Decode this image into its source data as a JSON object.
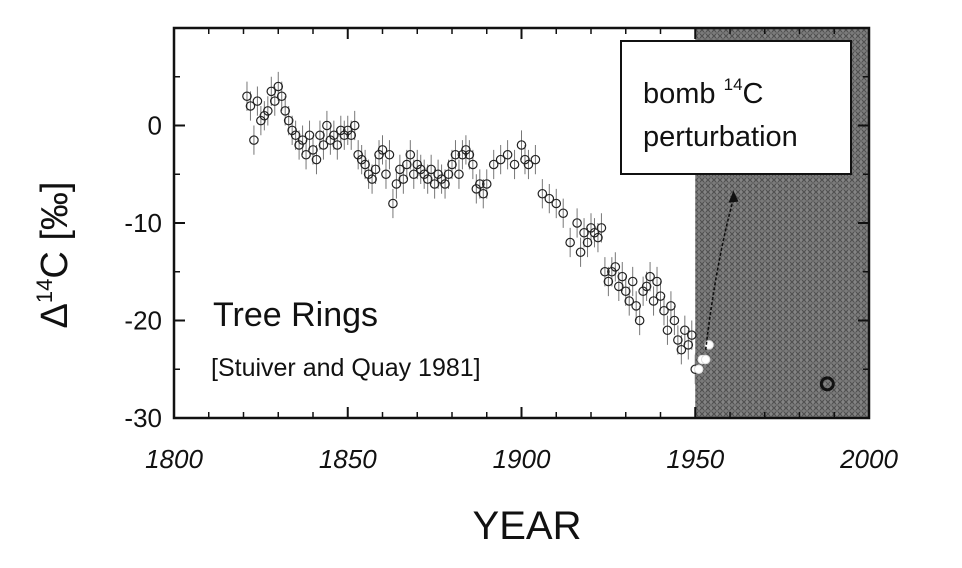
{
  "chart_data": {
    "type": "scatter",
    "title": "",
    "xlabel": "YEAR",
    "ylabel_prefix": "Δ",
    "ylabel_sup": "14",
    "ylabel_main": "C [‰]",
    "xlim": [
      1800,
      2000
    ],
    "ylim": [
      -30,
      10
    ],
    "xticks": [
      1800,
      1850,
      1900,
      1950,
      2000
    ],
    "xtick_labels": [
      "1800",
      "1850",
      "1900",
      "1950",
      "2000"
    ],
    "yticks": [
      -30,
      -20,
      -10,
      0
    ],
    "ytick_labels": [
      "-30",
      "-20",
      "-10",
      "0"
    ],
    "grid": false,
    "legend": "none",
    "annotations": {
      "series_label": "Tree Rings",
      "citation": "[Stuiver and Quay 1981]",
      "box_line1_pre": "bomb ",
      "box_line1_sup": "14",
      "box_line1_post": "C",
      "box_line2": "perturbation"
    },
    "shaded_region": {
      "x_from": 1950,
      "x_to": 2000,
      "color": "#6e6e6e"
    },
    "series": [
      {
        "name": "Tree Rings",
        "marker": "open-circle-errorbar",
        "x": [
          1821,
          1822,
          1823,
          1824,
          1825,
          1826,
          1827,
          1828,
          1829,
          1830,
          1831,
          1832,
          1833,
          1834,
          1835,
          1836,
          1837,
          1838,
          1839,
          1840,
          1841,
          1842,
          1843,
          1844,
          1845,
          1846,
          1847,
          1848,
          1849,
          1850,
          1851,
          1852,
          1853,
          1854,
          1855,
          1856,
          1857,
          1858,
          1859,
          1860,
          1861,
          1862,
          1863,
          1864,
          1865,
          1866,
          1867,
          1868,
          1869,
          1870,
          1871,
          1872,
          1873,
          1874,
          1875,
          1876,
          1877,
          1878,
          1879,
          1880,
          1881,
          1882,
          1883,
          1884,
          1885,
          1886,
          1887,
          1888,
          1889,
          1890,
          1892,
          1894,
          1896,
          1898,
          1900,
          1901,
          1902,
          1904,
          1906,
          1908,
          1910,
          1912,
          1914,
          1916,
          1917,
          1918,
          1919,
          1920,
          1921,
          1922,
          1923,
          1924,
          1925,
          1926,
          1927,
          1928,
          1929,
          1930,
          1931,
          1932,
          1933,
          1934,
          1935,
          1936,
          1937,
          1938,
          1939,
          1940,
          1941,
          1942,
          1943,
          1944,
          1945,
          1946,
          1947,
          1948,
          1949,
          1950
        ],
        "y": [
          3,
          2,
          -1.5,
          2.5,
          0.5,
          1,
          1.5,
          3.5,
          2.5,
          4,
          3,
          1.5,
          0.5,
          -0.5,
          -1,
          -2,
          -1.5,
          -3,
          -1,
          -2.5,
          -3.5,
          -1,
          -2,
          0,
          -1.5,
          -1,
          -2,
          -0.5,
          -1,
          -0.5,
          -1,
          0,
          -3,
          -3.5,
          -4,
          -5,
          -5.5,
          -4.5,
          -3,
          -2.5,
          -5,
          -3,
          -8,
          -6,
          -4.5,
          -5.5,
          -4,
          -3,
          -5,
          -4,
          -4.5,
          -5,
          -5.5,
          -4.5,
          -6,
          -5,
          -5.5,
          -6,
          -5,
          -4,
          -3,
          -5,
          -3,
          -2.5,
          -3,
          -4,
          -6.5,
          -6,
          -7,
          -6,
          -4,
          -3.5,
          -3,
          -4,
          -2,
          -3.5,
          -4,
          -3.5,
          -7,
          -7.5,
          -8,
          -9,
          -12,
          -10,
          -13,
          -11,
          -12,
          -10.5,
          -11,
          -11.5,
          -10.5,
          -15,
          -16,
          -15,
          -14.5,
          -16.5,
          -15.5,
          -17,
          -18,
          -16,
          -18.5,
          -20,
          -17,
          -16.5,
          -15.5,
          -18,
          -16,
          -17.5,
          -19,
          -21,
          -18.5,
          -20,
          -22,
          -23,
          -21,
          -22.5,
          -21.5,
          -25
        ],
        "errors": [
          1.5
        ]
      },
      {
        "name": "",
        "marker": "filled-circle-white",
        "x": [
          1951,
          1952,
          1953,
          1954
        ],
        "y": [
          -25,
          -24,
          -24,
          -22.5
        ]
      },
      {
        "name": "",
        "marker": "open-circle-white",
        "x": [
          1988
        ],
        "y": [
          -26.5
        ]
      }
    ]
  }
}
